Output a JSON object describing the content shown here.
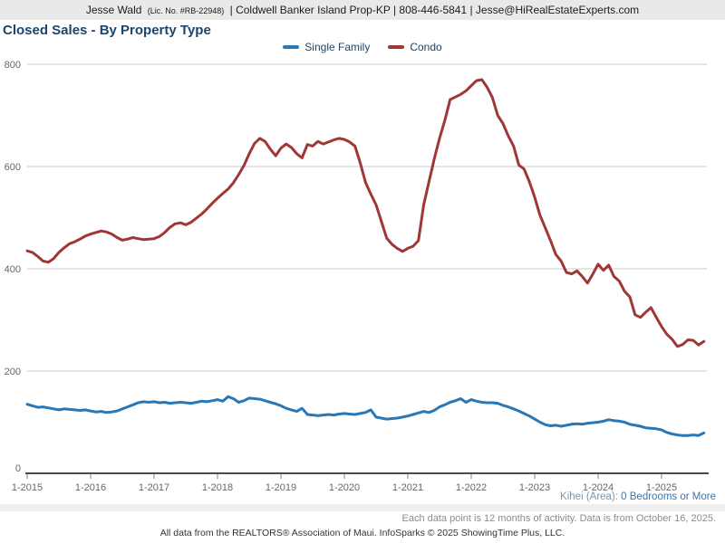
{
  "header": {
    "agent": "Jesse Wald",
    "license": "(Lic. No. #RB-22948)",
    "contact": "| Coldwell Banker Island Prop-KP | 808-446-5841 | Jesse@HiRealEstateExperts.com"
  },
  "title": "Closed Sales - By Property Type",
  "chart_data": {
    "type": "line",
    "title": "Closed Sales - By Property Type",
    "x_tick_labels": [
      "1-2015",
      "1-2016",
      "1-2017",
      "1-2018",
      "1-2019",
      "1-2020",
      "1-2021",
      "1-2022",
      "1-2023",
      "1-2024",
      "1-2025"
    ],
    "x_interval": "monthly, Jan 2015 - Sep 2025",
    "ylim": [
      0,
      800
    ],
    "y_ticks": [
      0,
      200,
      400,
      600,
      800
    ],
    "grid": "horizontal",
    "legend_position": "top-center",
    "series": [
      {
        "name": "Single Family",
        "color": "#2878B8",
        "values": [
          135,
          132,
          129,
          130,
          128,
          126,
          124,
          126,
          125,
          124,
          123,
          124,
          122,
          120,
          121,
          119,
          120,
          122,
          126,
          130,
          134,
          138,
          140,
          139,
          140,
          138,
          139,
          137,
          138,
          139,
          138,
          137,
          139,
          141,
          140,
          142,
          144,
          141,
          150,
          146,
          139,
          142,
          147,
          146,
          145,
          142,
          139,
          136,
          132,
          127,
          124,
          121,
          127,
          115,
          114,
          113,
          114,
          115,
          114,
          116,
          117,
          116,
          115,
          117,
          119,
          124,
          110,
          108,
          106,
          107,
          108,
          110,
          112,
          115,
          118,
          121,
          119,
          123,
          130,
          134,
          139,
          142,
          146,
          139,
          144,
          141,
          139,
          138,
          138,
          137,
          133,
          130,
          126,
          122,
          117,
          112,
          106,
          100,
          95,
          93,
          94,
          92,
          94,
          96,
          97,
          96,
          98,
          99,
          100,
          102,
          105,
          103,
          102,
          100,
          96,
          94,
          92,
          89,
          88,
          87,
          85,
          80,
          77,
          75,
          74,
          74,
          75,
          74,
          79
        ]
      },
      {
        "name": "Condo",
        "color": "#A03737",
        "values": [
          435,
          432,
          424,
          415,
          413,
          420,
          432,
          441,
          449,
          453,
          458,
          464,
          468,
          471,
          474,
          472,
          468,
          461,
          456,
          458,
          461,
          459,
          457,
          458,
          459,
          463,
          471,
          481,
          488,
          490,
          486,
          491,
          499,
          507,
          517,
          528,
          538,
          547,
          556,
          568,
          584,
          602,
          625,
          645,
          655,
          649,
          634,
          621,
          636,
          644,
          637,
          625,
          617,
          643,
          640,
          649,
          644,
          648,
          652,
          655,
          653,
          648,
          640,
          607,
          569,
          546,
          525,
          493,
          460,
          448,
          440,
          434,
          440,
          444,
          455,
          525,
          570,
          615,
          655,
          690,
          731,
          736,
          741,
          748,
          758,
          768,
          770,
          755,
          735,
          700,
          684,
          660,
          640,
          603,
          595,
          570,
          540,
          505,
          480,
          455,
          428,
          415,
          393,
          390,
          396,
          385,
          372,
          390,
          409,
          397,
          407,
          385,
          376,
          356,
          345,
          310,
          305,
          315,
          324,
          305,
          287,
          272,
          262,
          248,
          252,
          261,
          260,
          251,
          258
        ]
      }
    ]
  },
  "footnotes": {
    "filter_label": "Kihei (Area):",
    "filter_value": "0 Bedrooms or More",
    "data_note": "Each data point is 12 months of activity. Data is from October 16, 2025.",
    "attribution": "All data from the REALTORS® Association of Maui. InfoSparks © 2025 ShowingTime Plus, LLC."
  }
}
